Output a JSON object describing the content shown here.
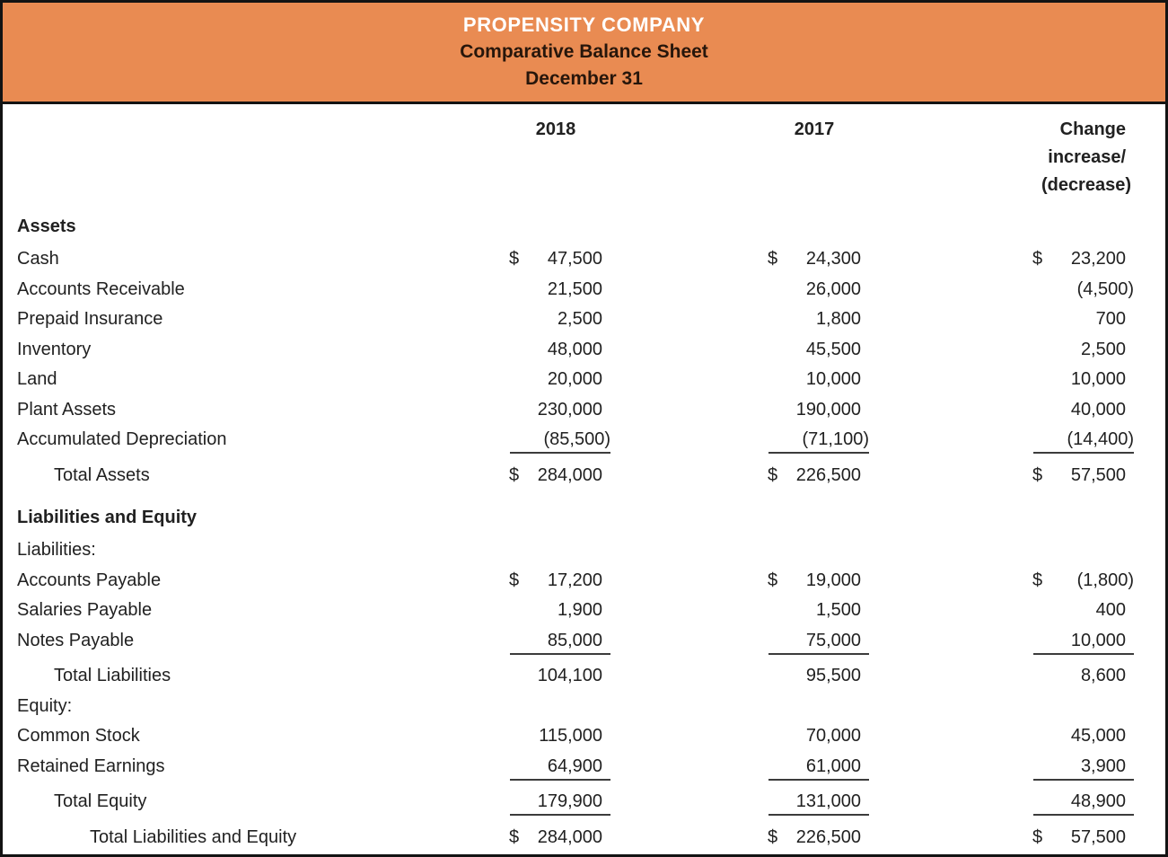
{
  "header": {
    "company": "PROPENSITY COMPANY",
    "title": "Comparative Balance Sheet",
    "date": "December 31",
    "bg_color": "#E98B52",
    "company_color": "#FFFFFF",
    "subtitle_color": "#27160B"
  },
  "columns": {
    "year1": "2018",
    "year2": "2017",
    "change_line1": "Change",
    "change_line2": "increase/",
    "change_line3": "(decrease)"
  },
  "colors": {
    "border": "#131313",
    "text": "#212121",
    "rule": "#3C3C3C"
  },
  "rows": [
    {
      "label": "Assets",
      "style": "section"
    },
    {
      "label": "Cash",
      "cur1": "$",
      "v1": "47,500",
      "cur2": "$",
      "v2": "24,300",
      "cur3": "$",
      "v3": "23,200"
    },
    {
      "label": "Accounts Receivable",
      "v1": "21,500",
      "v2": "26,000",
      "v3": "(4,500)"
    },
    {
      "label": "Prepaid Insurance",
      "v1": "2,500",
      "v2": "1,800",
      "v3": "700"
    },
    {
      "label": "Inventory",
      "v1": "48,000",
      "v2": "45,500",
      "v3": "2,500"
    },
    {
      "label": "Land",
      "v1": "20,000",
      "v2": "10,000",
      "v3": "10,000"
    },
    {
      "label": "Plant Assets",
      "v1": "230,000",
      "v2": "190,000",
      "v3": "40,000"
    },
    {
      "label": "Accumulated Depreciation",
      "v1": "(85,500)",
      "v2": "(71,100)",
      "v3": "(14,400)",
      "underline": true
    },
    {
      "label": "Total Assets",
      "indent": 1,
      "total": true,
      "cur1": "$",
      "v1": "284,000",
      "cur2": "$",
      "v2": "226,500",
      "cur3": "$",
      "v3": "57,500"
    },
    {
      "label": "Liabilities and Equity",
      "style": "section"
    },
    {
      "label": "Liabilities:"
    },
    {
      "label": "Accounts Payable",
      "cur1": "$",
      "v1": "17,200",
      "cur2": "$",
      "v2": "19,000",
      "cur3": "$",
      "v3": "(1,800)"
    },
    {
      "label": "Salaries Payable",
      "v1": "1,900",
      "v2": "1,500",
      "v3": "400"
    },
    {
      "label": "Notes Payable",
      "v1": "85,000",
      "v2": "75,000",
      "v3": "10,000",
      "underline": true
    },
    {
      "label": "Total Liabilities",
      "indent": 1,
      "total": true,
      "v1": "104,100",
      "v2": "95,500",
      "v3": "8,600"
    },
    {
      "label": "Equity:"
    },
    {
      "label": "Common Stock",
      "v1": "115,000",
      "v2": "70,000",
      "v3": "45,000"
    },
    {
      "label": "Retained Earnings",
      "v1": "64,900",
      "v2": "61,000",
      "v3": "3,900",
      "underline": true
    },
    {
      "label": "Total Equity",
      "indent": 1,
      "total": true,
      "v1": "179,900",
      "v2": "131,000",
      "v3": "48,900",
      "underline": true
    },
    {
      "label": "Total Liabilities and Equity",
      "indent": 2,
      "total": true,
      "cur1": "$",
      "v1": "284,000",
      "cur2": "$",
      "v2": "226,500",
      "cur3": "$",
      "v3": "57,500"
    }
  ]
}
